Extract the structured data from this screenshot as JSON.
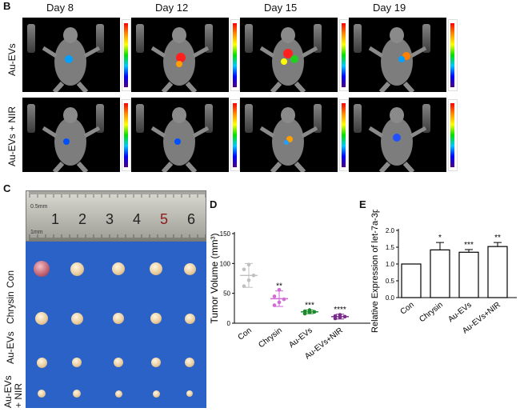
{
  "panels": {
    "B": "B",
    "C": "C",
    "D": "D",
    "E": "E"
  },
  "days": [
    "Day 8",
    "Day 12",
    "Day 15",
    "Day 19"
  ],
  "rows": [
    "Au-EVs",
    "Au-EVs + NIR"
  ],
  "panelC": {
    "row_labels": [
      "Con",
      "Chrysin",
      "Au-EVs",
      "Au-EVs\n+ NIR"
    ],
    "ruler_numbers": [
      "1",
      "2",
      "3",
      "4",
      "5",
      "6"
    ],
    "ruler_text": [
      "0.5mm",
      "1mm"
    ]
  },
  "chart_data": [
    {
      "type": "scatter",
      "ylabel": "Tumor Volume (mm³)",
      "categories": [
        "Con",
        "Chrysin",
        "Au-EVs",
        "Au-EVs+NIR"
      ],
      "ylim": [
        0,
        150
      ],
      "yticks": [
        "0",
        "50",
        "100",
        "150"
      ],
      "means": [
        80,
        41,
        19,
        11
      ],
      "errors": [
        20,
        13,
        3,
        4
      ],
      "points": [
        [
          62,
          72,
          80,
          90,
          98
        ],
        [
          30,
          35,
          40,
          45,
          56
        ],
        [
          16,
          18,
          19,
          20,
          22
        ],
        [
          8,
          10,
          11,
          12,
          14
        ]
      ],
      "colors": [
        "#c0c0c0",
        "#d36ad6",
        "#1a8a2a",
        "#7a2a8a"
      ],
      "annotations": [
        "",
        "**",
        "***",
        "****"
      ]
    },
    {
      "type": "bar",
      "ylabel": "Relative Expression of let-7a-3p",
      "categories": [
        "Con",
        "Chrysin",
        "Au-EVs",
        "Au-EVs+NIR"
      ],
      "values": [
        1.0,
        1.42,
        1.35,
        1.52
      ],
      "errors": [
        0,
        0.22,
        0.08,
        0.12
      ],
      "ylim": [
        0,
        2.0
      ],
      "yticks": [
        "0.0",
        "0.5",
        "1.0",
        "1.5",
        "2.0"
      ],
      "annotations": [
        "",
        "*",
        "***",
        "**"
      ]
    }
  ]
}
